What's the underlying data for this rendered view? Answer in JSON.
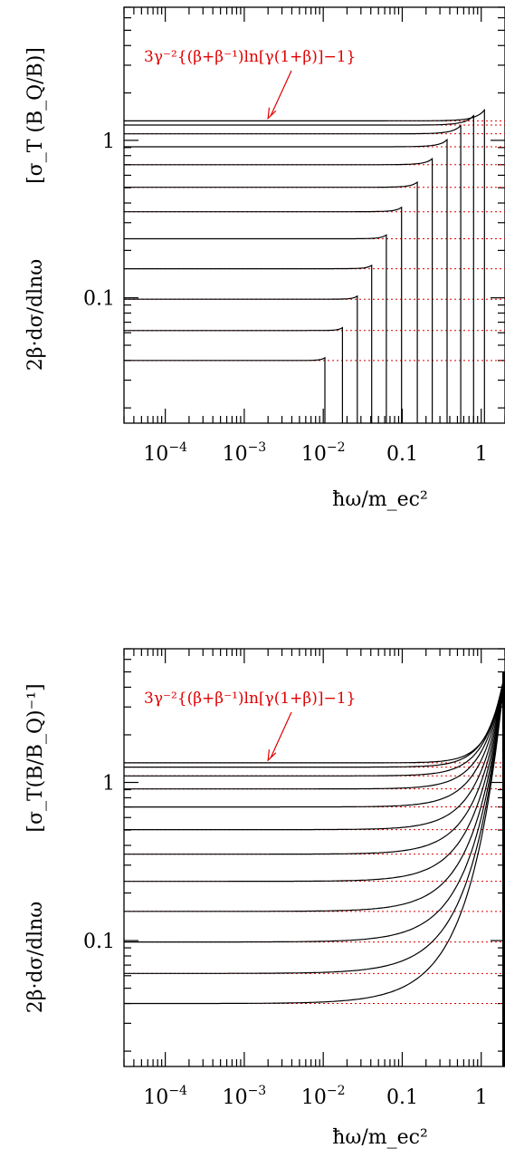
{
  "chart_data": [
    {
      "type": "line",
      "panel": "top",
      "xlabel": "ħω/m_ec²",
      "ylabel_left": "2β·dσ/dlnω",
      "ylabel_right": "[σ_T (B_Q/B)]",
      "x_scale": "log",
      "y_scale": "log",
      "xlim": [
        3e-05,
        2.0
      ],
      "ylim": [
        0.016,
        7.0
      ],
      "x_tick_labels": [
        "10^-4",
        "10^-3",
        "10^-2",
        "0.1",
        "1"
      ],
      "y_tick_labels": [
        "0.1",
        "1"
      ],
      "annotation": "3γ⁻²{(β+β⁻¹)ln[γ(1+β)]−1}",
      "annotation_arrow_target": {
        "x": 0.002,
        "y": 1.38
      },
      "curve_color": "#000000",
      "asymptote_color": "#e00000",
      "asymptote_style": "dotted",
      "series": [
        {
          "plateau": 0.04,
          "cutoff": 0.0105
        },
        {
          "plateau": 0.062,
          "cutoff": 0.0175
        },
        {
          "plateau": 0.098,
          "cutoff": 0.027
        },
        {
          "plateau": 0.153,
          "cutoff": 0.041
        },
        {
          "plateau": 0.237,
          "cutoff": 0.063
        },
        {
          "plateau": 0.352,
          "cutoff": 0.098
        },
        {
          "plateau": 0.503,
          "cutoff": 0.155
        },
        {
          "plateau": 0.7,
          "cutoff": 0.24
        },
        {
          "plateau": 0.91,
          "cutoff": 0.37
        },
        {
          "plateau": 1.1,
          "cutoff": 0.55
        },
        {
          "plateau": 1.25,
          "cutoff": 0.8
        },
        {
          "plateau": 1.33,
          "cutoff": 1.1
        }
      ]
    },
    {
      "type": "line",
      "panel": "bottom",
      "xlabel": "ħω/m_ec²",
      "ylabel_left": "2β·dσ/dlnω",
      "ylabel_right": "[σ_T(B/B_Q)⁻¹]",
      "x_scale": "log",
      "y_scale": "log",
      "xlim": [
        3e-05,
        2.0
      ],
      "ylim": [
        0.016,
        7.0
      ],
      "x_tick_labels": [
        "10^-4",
        "10^-3",
        "10^-2",
        "0.1",
        "1"
      ],
      "y_tick_labels": [
        "0.1",
        "1"
      ],
      "annotation": "3γ⁻²{(β+β⁻¹)ln[γ(1+β)]−1}",
      "annotation_arrow_target": {
        "x": 0.002,
        "y": 1.38
      },
      "curve_color": "#000000",
      "asymptote_color": "#e00000",
      "asymptote_style": "dotted",
      "convergence_point": {
        "x": 2.0,
        "y": 5.0
      },
      "series": [
        {
          "plateau": 0.04
        },
        {
          "plateau": 0.062
        },
        {
          "plateau": 0.098
        },
        {
          "plateau": 0.153
        },
        {
          "plateau": 0.237
        },
        {
          "plateau": 0.352
        },
        {
          "plateau": 0.503
        },
        {
          "plateau": 0.7
        },
        {
          "plateau": 0.91
        },
        {
          "plateau": 1.1
        },
        {
          "plateau": 1.25
        },
        {
          "plateau": 1.33
        }
      ]
    }
  ]
}
